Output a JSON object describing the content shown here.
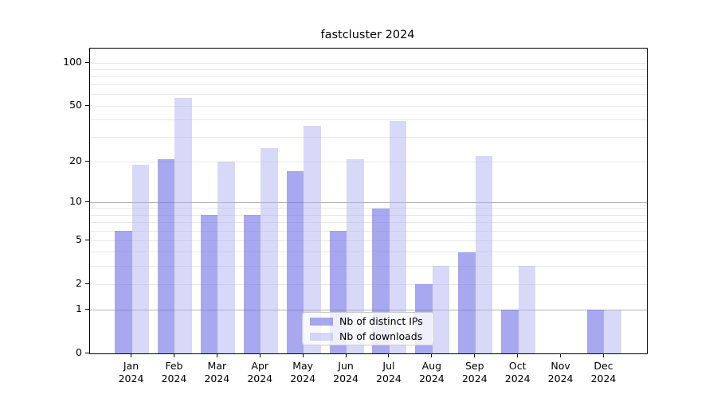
{
  "title": "fastcluster 2024",
  "legend": {
    "items": [
      {
        "label": "Nb of distinct IPs",
        "color": "rgba(110,110,230,0.6)"
      },
      {
        "label": "Nb of downloads",
        "color": "rgba(168,168,240,0.45)"
      }
    ]
  },
  "axes": {
    "y_tick_values": [
      0,
      1,
      2,
      5,
      10,
      20,
      50,
      100
    ],
    "y_major_grid_values": [
      1,
      10
    ],
    "y_minor_grid_values": [
      2,
      3,
      4,
      5,
      6,
      7,
      8,
      9,
      20,
      30,
      40,
      50,
      60,
      70,
      80,
      90,
      100
    ],
    "x_tick_labels": [
      "Jan 2024",
      "Feb 2024",
      "Mar 2024",
      "Apr 2024",
      "May 2024",
      "Jun 2024",
      "Jul 2024",
      "Aug 2024",
      "Sep 2024",
      "Oct 2024",
      "Nov 2024",
      "Dec 2024"
    ]
  },
  "colors": {
    "bar_distinct_ips": "rgba(110,110,230,0.6)",
    "bar_downloads": "rgba(168,168,240,0.45)",
    "grid_major": "#b4b4b4",
    "grid_minor": "#e9e9e9",
    "axis": "#000000"
  },
  "chart_data": {
    "type": "bar",
    "title": "fastcluster 2024",
    "categories": [
      "Jan 2024",
      "Feb 2024",
      "Mar 2024",
      "Apr 2024",
      "May 2024",
      "Jun 2024",
      "Jul 2024",
      "Aug 2024",
      "Sep 2024",
      "Oct 2024",
      "Nov 2024",
      "Dec 2024"
    ],
    "series": [
      {
        "name": "Nb of distinct IPs",
        "values": [
          6,
          21,
          8,
          8,
          17,
          6,
          9,
          2,
          4,
          1,
          0,
          1
        ]
      },
      {
        "name": "Nb of downloads",
        "values": [
          19,
          57,
          20,
          25,
          36,
          21,
          39,
          3,
          22,
          3,
          0,
          1
        ]
      }
    ],
    "xlabel": "",
    "ylabel": "",
    "yscale": "log1p",
    "yticks": [
      0,
      1,
      2,
      5,
      10,
      20,
      50,
      100
    ],
    "ylim": [
      0,
      126
    ],
    "grid": "horizontal major+minor",
    "legend_position": "inside lower-center"
  }
}
